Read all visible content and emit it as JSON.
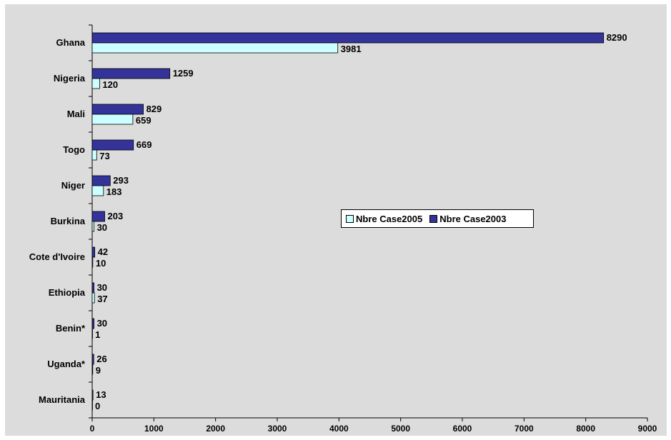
{
  "chart_data": {
    "type": "bar",
    "orientation": "horizontal",
    "categories": [
      "Ghana",
      "Nigeria",
      "Mali",
      "Togo",
      "Niger",
      "Burkina",
      "Cote d'Ivoire",
      "Ethiopia",
      "Benin*",
      "Uganda*",
      "Mauritania"
    ],
    "series": [
      {
        "name": "Nbre Case2003",
        "color": "#333399",
        "values": [
          8290,
          1259,
          829,
          669,
          293,
          203,
          42,
          30,
          30,
          26,
          13
        ]
      },
      {
        "name": "Nbre Case2005",
        "color": "#ccffff",
        "values": [
          3981,
          120,
          659,
          73,
          183,
          30,
          10,
          37,
          1,
          9,
          0
        ]
      }
    ],
    "xlim": [
      0,
      9000
    ],
    "xticks": [
      "0",
      "1000",
      "2000",
      "3000",
      "4000",
      "5000",
      "6000",
      "7000",
      "8000",
      "9000"
    ],
    "legend": {
      "placement": "center-right",
      "entries": [
        "Nbre Case2005",
        "Nbre Case2003"
      ]
    },
    "plot_background": "#dcdcdc",
    "grid": false
  }
}
